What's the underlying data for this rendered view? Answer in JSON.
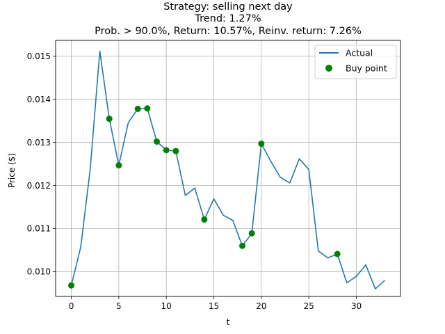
{
  "chart_data": {
    "type": "line",
    "title_lines": [
      "Strategy: selling next day",
      "Trend: 1.27%",
      "Prob. > 90.0%, Return: 10.57%, Reinv. return: 7.26%"
    ],
    "xlabel": "t",
    "ylabel": "Price ($)",
    "xlim": [
      -1.65,
      34.65
    ],
    "ylim": [
      0.009425,
      0.01537
    ],
    "xticks": [
      0,
      5,
      10,
      15,
      20,
      25,
      30
    ],
    "yticks": [
      0.01,
      0.011,
      0.012,
      0.013,
      0.014,
      0.015
    ],
    "ytick_labels": [
      "0.010",
      "0.011",
      "0.012",
      "0.013",
      "0.014",
      "0.015"
    ],
    "grid": true,
    "legend_position": "upper right",
    "series": [
      {
        "name": "Actual",
        "kind": "line",
        "color": "#1f77b4",
        "x": [
          0,
          1,
          2,
          3,
          4,
          5,
          6,
          7,
          8,
          9,
          10,
          11,
          12,
          13,
          14,
          15,
          16,
          17,
          18,
          19,
          20,
          21,
          22,
          23,
          24,
          25,
          26,
          27,
          28,
          29,
          30,
          31,
          32,
          33
        ],
        "y": [
          0.00968,
          0.01058,
          0.0124,
          0.01512,
          0.01355,
          0.01247,
          0.01346,
          0.01378,
          0.01379,
          0.01302,
          0.01282,
          0.0128,
          0.01177,
          0.01194,
          0.01121,
          0.01169,
          0.01131,
          0.01119,
          0.0106,
          0.01089,
          0.01297,
          0.01256,
          0.01219,
          0.01206,
          0.01262,
          0.01237,
          0.01048,
          0.01032,
          0.01041,
          0.00974,
          0.00989,
          0.01016,
          0.0096,
          0.0098
        ]
      },
      {
        "name": "Buy point",
        "kind": "scatter",
        "color": "#008000",
        "x": [
          0,
          4,
          5,
          7,
          8,
          9,
          10,
          11,
          14,
          18,
          19,
          20,
          28
        ],
        "y": [
          0.00968,
          0.01355,
          0.01247,
          0.01378,
          0.01379,
          0.01302,
          0.01282,
          0.0128,
          0.01121,
          0.0106,
          0.01089,
          0.01297,
          0.01041
        ]
      }
    ]
  }
}
